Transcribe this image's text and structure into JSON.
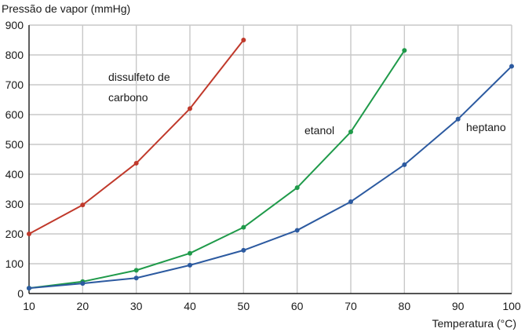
{
  "chart_data": {
    "type": "line",
    "title": "",
    "ylabel": "Pressão de vapor (mmHg)",
    "xlabel": "Temperatura (°C)",
    "xlim": [
      10,
      100
    ],
    "ylim": [
      0,
      900
    ],
    "xticks": [
      10,
      20,
      30,
      40,
      50,
      60,
      70,
      80,
      90,
      100
    ],
    "yticks": [
      0,
      100,
      200,
      300,
      400,
      500,
      600,
      700,
      800,
      900
    ],
    "grid": true,
    "series": [
      {
        "name": "dissulfeto de carbono",
        "label_lines": [
          "dissulfeto de",
          "carbono"
        ],
        "color": "#c0392b",
        "x": [
          10,
          20,
          30,
          40,
          50
        ],
        "y": [
          200,
          297,
          437,
          620,
          850
        ]
      },
      {
        "name": "etanol",
        "label_lines": [
          "etanol"
        ],
        "color": "#1f9a4a",
        "x": [
          10,
          20,
          30,
          40,
          50,
          60,
          70,
          80
        ],
        "y": [
          18,
          40,
          78,
          135,
          222,
          355,
          542,
          815
        ]
      },
      {
        "name": "heptano",
        "label_lines": [
          "heptano"
        ],
        "color": "#2c5aa0",
        "x": [
          10,
          20,
          30,
          40,
          50,
          60,
          70,
          80,
          90,
          100
        ],
        "y": [
          18,
          34,
          52,
          95,
          145,
          212,
          308,
          432,
          585,
          762
        ]
      }
    ]
  }
}
